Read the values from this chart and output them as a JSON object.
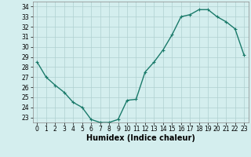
{
  "x": [
    0,
    1,
    2,
    3,
    4,
    5,
    6,
    7,
    8,
    9,
    10,
    11,
    12,
    13,
    14,
    15,
    16,
    17,
    18,
    19,
    20,
    21,
    22,
    23
  ],
  "y": [
    28.5,
    27.0,
    26.2,
    25.5,
    24.5,
    24.0,
    22.8,
    22.5,
    22.5,
    22.8,
    24.7,
    24.8,
    27.5,
    28.5,
    29.7,
    31.2,
    33.0,
    33.2,
    33.7,
    33.7,
    33.0,
    32.5,
    31.8,
    29.2
  ],
  "line_color": "#1a7a6a",
  "marker": "+",
  "marker_size": 3,
  "marker_linewidth": 0.8,
  "bg_color": "#d4eeee",
  "grid_color": "#b0d0d0",
  "xlabel": "Humidex (Indice chaleur)",
  "xlim": [
    -0.5,
    23.5
  ],
  "ylim": [
    22.5,
    34.5
  ],
  "yticks": [
    23,
    24,
    25,
    26,
    27,
    28,
    29,
    30,
    31,
    32,
    33,
    34
  ],
  "xticks": [
    0,
    1,
    2,
    3,
    4,
    5,
    6,
    7,
    8,
    9,
    10,
    11,
    12,
    13,
    14,
    15,
    16,
    17,
    18,
    19,
    20,
    21,
    22,
    23
  ],
  "tick_fontsize": 5.5,
  "xlabel_fontsize": 7,
  "linewidth": 1.0
}
